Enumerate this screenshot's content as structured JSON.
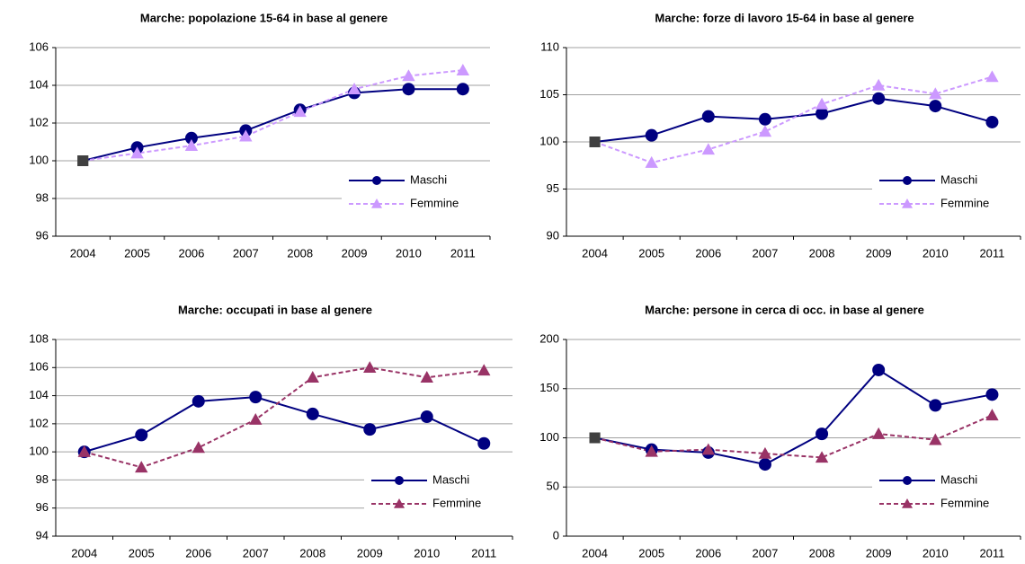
{
  "chart_data": [
    {
      "type": "line",
      "title": "Marche: popolazione 15-64  in base al genere",
      "categories": [
        "2004",
        "2005",
        "2006",
        "2007",
        "2008",
        "2009",
        "2010",
        "2011"
      ],
      "ylim": [
        96,
        106
      ],
      "yticks": [
        96,
        98,
        100,
        102,
        104,
        106
      ],
      "grid": true,
      "legend": "lower right",
      "first_point_color": "#404040",
      "series": [
        {
          "name": "Maschi",
          "color": "#000080",
          "marker": "circle",
          "dashed": false,
          "values": [
            100,
            100.7,
            101.2,
            101.6,
            102.7,
            103.6,
            103.8,
            103.8
          ]
        },
        {
          "name": "Femmine",
          "color": "#cc99ff",
          "marker": "triangle",
          "dashed": true,
          "values": [
            100,
            100.4,
            100.8,
            101.3,
            102.6,
            103.8,
            104.5,
            104.8
          ]
        }
      ]
    },
    {
      "type": "line",
      "title": "Marche: forze di lavoro 15-64 in base al genere",
      "categories": [
        "2004",
        "2005",
        "2006",
        "2007",
        "2008",
        "2009",
        "2010",
        "2011"
      ],
      "ylim": [
        90,
        110
      ],
      "yticks": [
        90,
        95,
        100,
        105,
        110
      ],
      "grid": true,
      "legend": "lower right",
      "first_point_color": "#404040",
      "series": [
        {
          "name": "Maschi",
          "color": "#000080",
          "marker": "circle",
          "dashed": false,
          "values": [
            100,
            100.7,
            102.7,
            102.4,
            103,
            104.6,
            103.8,
            102.1
          ]
        },
        {
          "name": "Femmine",
          "color": "#cc99ff",
          "marker": "triangle",
          "dashed": true,
          "values": [
            100,
            97.8,
            99.2,
            101.1,
            104,
            106,
            105.1,
            106.9
          ]
        }
      ]
    },
    {
      "type": "line",
      "title": "Marche: occupati in base al genere",
      "categories": [
        "2004",
        "2005",
        "2006",
        "2007",
        "2008",
        "2009",
        "2010",
        "2011"
      ],
      "ylim": [
        94,
        108
      ],
      "yticks": [
        94,
        96,
        98,
        100,
        102,
        104,
        106,
        108
      ],
      "grid": true,
      "legend": "lower right",
      "series": [
        {
          "name": "Maschi",
          "color": "#000080",
          "marker": "circle",
          "dashed": false,
          "values": [
            100,
            101.2,
            103.6,
            103.9,
            102.7,
            101.6,
            102.5,
            100.6
          ]
        },
        {
          "name": "Femmine",
          "color": "#993366",
          "marker": "triangle",
          "dashed": true,
          "values": [
            100,
            98.9,
            100.3,
            102.3,
            105.3,
            106,
            105.3,
            105.8
          ]
        }
      ]
    },
    {
      "type": "line",
      "title": "Marche: persone in cerca di occ. in base al genere",
      "categories": [
        "2004",
        "2005",
        "2006",
        "2007",
        "2008",
        "2009",
        "2010",
        "2011"
      ],
      "ylim": [
        0,
        200
      ],
      "yticks": [
        0,
        50,
        100,
        150,
        200
      ],
      "grid": true,
      "legend": "lower right",
      "first_point_color": "#404040",
      "series": [
        {
          "name": "Maschi",
          "color": "#000080",
          "marker": "circle",
          "dashed": false,
          "values": [
            100,
            88,
            85,
            73,
            104,
            169,
            133,
            144
          ]
        },
        {
          "name": "Femmine",
          "color": "#993366",
          "marker": "triangle",
          "dashed": true,
          "values": [
            100,
            86,
            88,
            84,
            80,
            104,
            98,
            123
          ]
        }
      ]
    }
  ]
}
